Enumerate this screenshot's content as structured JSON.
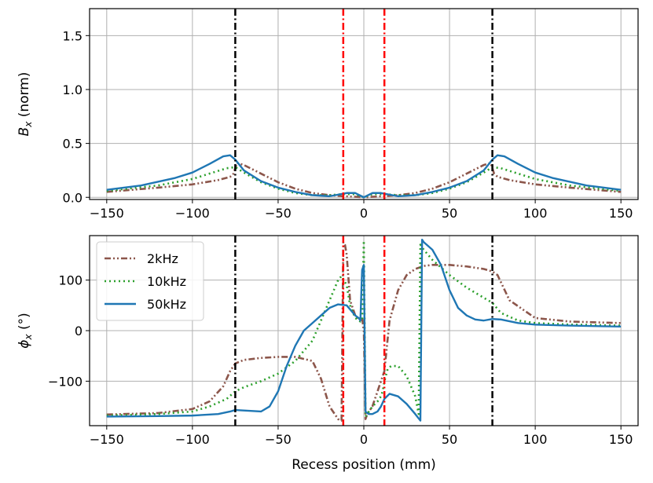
{
  "chart_data": [
    {
      "type": "line",
      "ylabel_var": "B",
      "ylabel_sub": "x",
      "ylabel_rest": " (norm)",
      "xlabel": "",
      "xlim": [
        -160,
        160
      ],
      "ylim": [
        -0.02,
        1.75
      ],
      "xticks": [
        -150,
        -100,
        -50,
        0,
        50,
        100,
        150
      ],
      "xtick_labels": [
        "−150",
        "−100",
        "−50",
        "0",
        "50",
        "100",
        "150"
      ],
      "yticks": [
        0.0,
        0.5,
        1.0,
        1.5
      ],
      "ytick_labels": [
        "0.0",
        "0.5",
        "1.0",
        "1.5"
      ],
      "grid": true,
      "vlines": [
        {
          "x": -75,
          "color": "#000000",
          "style": "dashdot"
        },
        {
          "x": 75,
          "color": "#000000",
          "style": "dashdot"
        },
        {
          "x": -12,
          "color": "#ff0000",
          "style": "dashdot"
        },
        {
          "x": 12,
          "color": "#ff0000",
          "style": "dashdot"
        }
      ],
      "series": [
        {
          "name": "2kHz",
          "color": "#8c564b",
          "style": "dashdotdot",
          "x": [
            -150,
            -120,
            -100,
            -85,
            -78,
            -76,
            -74,
            -70,
            -60,
            -50,
            -40,
            -30,
            -20,
            -12,
            -5,
            0,
            5,
            12,
            20,
            30,
            40,
            50,
            60,
            70,
            74,
            76,
            78,
            85,
            100,
            120,
            150
          ],
          "y": [
            0.05,
            0.09,
            0.12,
            0.16,
            0.19,
            0.22,
            0.32,
            0.3,
            0.22,
            0.14,
            0.08,
            0.04,
            0.02,
            0.01,
            0.005,
            0.0,
            0.005,
            0.01,
            0.02,
            0.04,
            0.08,
            0.14,
            0.22,
            0.3,
            0.32,
            0.22,
            0.19,
            0.16,
            0.12,
            0.09,
            0.05
          ]
        },
        {
          "name": "10kHz",
          "color": "#2ca02c",
          "style": "dotted",
          "x": [
            -150,
            -120,
            -100,
            -90,
            -80,
            -75,
            -70,
            -60,
            -50,
            -40,
            -30,
            -20,
            -12,
            -5,
            0,
            5,
            12,
            20,
            30,
            40,
            50,
            60,
            70,
            75,
            80,
            90,
            100,
            120,
            150
          ],
          "y": [
            0.06,
            0.11,
            0.17,
            0.22,
            0.27,
            0.28,
            0.23,
            0.14,
            0.08,
            0.04,
            0.02,
            0.02,
            0.03,
            0.03,
            0.0,
            0.03,
            0.03,
            0.02,
            0.02,
            0.04,
            0.08,
            0.14,
            0.23,
            0.28,
            0.27,
            0.22,
            0.17,
            0.11,
            0.06
          ]
        },
        {
          "name": "50kHz",
          "color": "#1f77b4",
          "style": "solid",
          "x": [
            -150,
            -130,
            -110,
            -100,
            -90,
            -82,
            -78,
            -75,
            -70,
            -60,
            -50,
            -40,
            -30,
            -20,
            -10,
            -5,
            0,
            5,
            10,
            20,
            30,
            40,
            50,
            60,
            70,
            75,
            78,
            82,
            90,
            100,
            110,
            130,
            150
          ],
          "y": [
            0.07,
            0.11,
            0.18,
            0.23,
            0.31,
            0.38,
            0.39,
            0.35,
            0.25,
            0.15,
            0.09,
            0.05,
            0.02,
            0.01,
            0.04,
            0.04,
            0.0,
            0.04,
            0.04,
            0.01,
            0.02,
            0.05,
            0.09,
            0.15,
            0.25,
            0.35,
            0.39,
            0.38,
            0.31,
            0.23,
            0.18,
            0.11,
            0.07
          ]
        }
      ]
    },
    {
      "type": "line",
      "ylabel_var": "ϕ",
      "ylabel_sub": "x",
      "ylabel_rest": " (°)",
      "xlabel": "Recess position (mm)",
      "xlim": [
        -160,
        160
      ],
      "ylim": [
        -188,
        188
      ],
      "xticks": [
        -150,
        -100,
        -50,
        0,
        50,
        100,
        150
      ],
      "xtick_labels": [
        "−150",
        "−100",
        "−50",
        "0",
        "50",
        "100",
        "150"
      ],
      "yticks": [
        -100,
        0,
        100
      ],
      "ytick_labels": [
        "−100",
        "0",
        "100"
      ],
      "grid": true,
      "legend": "top-left",
      "vlines": [
        {
          "x": -75,
          "color": "#000000",
          "style": "dashdot"
        },
        {
          "x": 75,
          "color": "#000000",
          "style": "dashdot"
        },
        {
          "x": -12,
          "color": "#ff0000",
          "style": "dashdot"
        },
        {
          "x": 12,
          "color": "#ff0000",
          "style": "dashdot"
        }
      ],
      "series": [
        {
          "name": "2kHz",
          "color": "#8c564b",
          "style": "dashdotdot",
          "x": [
            -150,
            -120,
            -100,
            -90,
            -82,
            -78,
            -75,
            -70,
            -60,
            -50,
            -40,
            -30,
            -25,
            -20,
            -15,
            -13,
            -12,
            -11,
            -10,
            -8,
            -5,
            -2,
            -1,
            0,
            1,
            2,
            3,
            5,
            8,
            10,
            12,
            15,
            20,
            25,
            30,
            35,
            40,
            50,
            60,
            70,
            75,
            78,
            85,
            100,
            120,
            150
          ],
          "y": [
            -166,
            -163,
            -155,
            -140,
            -110,
            -80,
            -65,
            -58,
            -54,
            -52,
            -52,
            -60,
            -95,
            -150,
            -175,
            -178,
            175,
            170,
            150,
            60,
            30,
            20,
            25,
            0,
            -175,
            -165,
            -160,
            -150,
            -120,
            -100,
            -80,
            20,
            80,
            110,
            122,
            128,
            130,
            130,
            127,
            122,
            117,
            110,
            60,
            25,
            18,
            15
          ]
        },
        {
          "name": "10kHz",
          "color": "#2ca02c",
          "style": "dotted",
          "x": [
            -150,
            -120,
            -100,
            -90,
            -80,
            -75,
            -70,
            -60,
            -50,
            -40,
            -30,
            -25,
            -20,
            -15,
            -13,
            -10,
            -8,
            -5,
            -2,
            -1,
            0,
            1,
            2,
            3,
            5,
            8,
            10,
            11,
            12,
            14,
            16,
            20,
            25,
            30,
            32,
            33,
            35,
            40,
            50,
            60,
            70,
            75,
            80,
            90,
            100,
            120,
            150
          ],
          "y": [
            -168,
            -165,
            -160,
            -150,
            -135,
            -120,
            -112,
            -100,
            -85,
            -60,
            -20,
            20,
            60,
            100,
            108,
            90,
            50,
            25,
            18,
            20,
            178,
            -170,
            -165,
            -160,
            -150,
            -140,
            -130,
            -120,
            -100,
            -75,
            -70,
            -70,
            -90,
            -130,
            -165,
            170,
            160,
            140,
            110,
            85,
            65,
            55,
            35,
            20,
            15,
            12,
            10
          ]
        },
        {
          "name": "50kHz",
          "color": "#1f77b4",
          "style": "solid",
          "x": [
            -150,
            -120,
            -100,
            -85,
            -78,
            -75,
            -70,
            -60,
            -55,
            -50,
            -45,
            -40,
            -35,
            -30,
            -25,
            -20,
            -15,
            -10,
            -8,
            -5,
            -3,
            -2,
            -1,
            0,
            1,
            2,
            3,
            5,
            8,
            10,
            12,
            15,
            20,
            25,
            30,
            33,
            34,
            35,
            40,
            45,
            50,
            55,
            60,
            65,
            70,
            75,
            80,
            90,
            100,
            120,
            150
          ],
          "y": [
            -170,
            -169,
            -168,
            -165,
            -160,
            -157,
            -158,
            -160,
            -150,
            -120,
            -70,
            -30,
            0,
            15,
            30,
            45,
            52,
            50,
            42,
            30,
            25,
            20,
            120,
            130,
            -160,
            -163,
            -165,
            -165,
            -160,
            -150,
            -135,
            -125,
            -130,
            -145,
            -165,
            -178,
            180,
            175,
            160,
            130,
            80,
            45,
            30,
            22,
            20,
            23,
            22,
            15,
            12,
            10,
            8
          ]
        }
      ]
    }
  ]
}
